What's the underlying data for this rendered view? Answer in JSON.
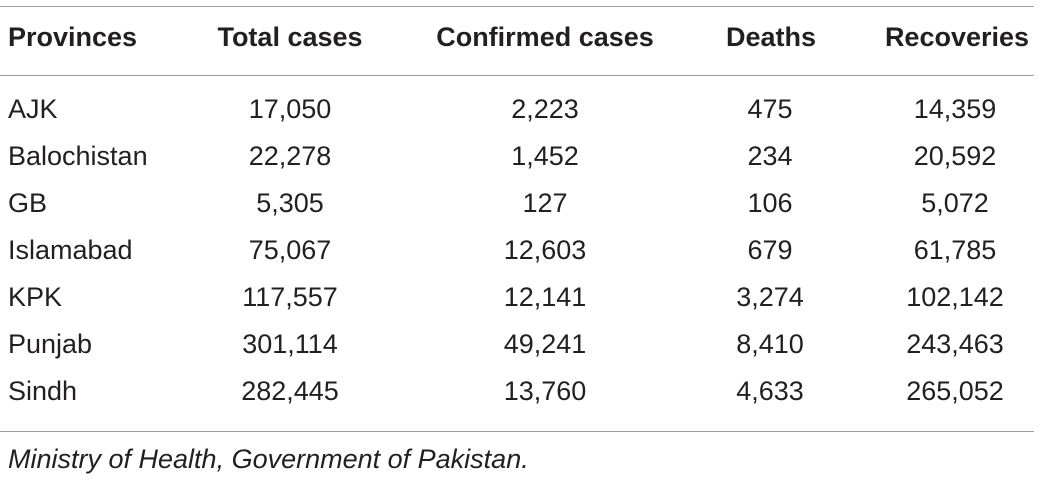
{
  "table": {
    "headers": [
      "Provinces",
      "Total cases",
      "Confirmed cases",
      "Deaths",
      "Recoveries"
    ],
    "rows": [
      [
        "AJK",
        "17,050",
        "2,223",
        "475",
        "14,359"
      ],
      [
        "Balochistan",
        "22,278",
        "1,452",
        "234",
        "20,592"
      ],
      [
        "GB",
        "5,305",
        "127",
        "106",
        "5,072"
      ],
      [
        "Islamabad",
        "75,067",
        "12,603",
        "679",
        "61,785"
      ],
      [
        "KPK",
        "117,557",
        "12,141",
        "3,274",
        "102,142"
      ],
      [
        "Punjab",
        "301,114",
        "49,241",
        "8,410",
        "243,463"
      ],
      [
        "Sindh",
        "282,445",
        "13,760",
        "4,633",
        "265,052"
      ]
    ],
    "footnote": "Ministry of Health, Government of Pakistan."
  },
  "colors": {
    "text": "#231f20",
    "rule": "#9e9e9e",
    "background": "#ffffff"
  }
}
